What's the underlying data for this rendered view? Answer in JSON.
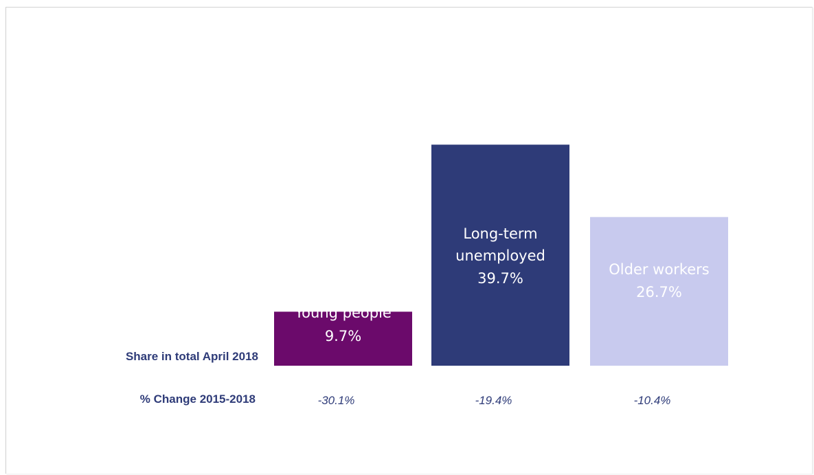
{
  "chart_data": {
    "type": "bar",
    "categories": [
      "Young people",
      "Long-term unemployed",
      "Older workers"
    ],
    "bar_label_lines": [
      [
        "Young people",
        "9.7%"
      ],
      [
        "Long-term",
        "unemployed",
        "39.7%"
      ],
      [
        "Older workers",
        "26.7%"
      ]
    ],
    "series": [
      {
        "name": "Share in total April 2018",
        "values": [
          9.7,
          39.7,
          26.7
        ]
      },
      {
        "name": "% Change 2015-2018",
        "values": [
          -30.1,
          -19.4,
          -10.4
        ]
      }
    ],
    "change_labels": [
      "-30.1%",
      "-19.4%",
      "-10.4%"
    ],
    "row_labels": {
      "share": "Share in total April 2018",
      "change": "% Change 2015-2018"
    },
    "colors": [
      "#6b0a6b",
      "#2e3b78",
      "#c8caee"
    ],
    "label_text_colors": [
      "#ffffff",
      "#ffffff",
      "#ffffff"
    ],
    "row_label_color": "#2e3b78",
    "change_text_color": "#2e3b78",
    "ylim": [
      0,
      40
    ],
    "grid": false,
    "legend": "none"
  }
}
